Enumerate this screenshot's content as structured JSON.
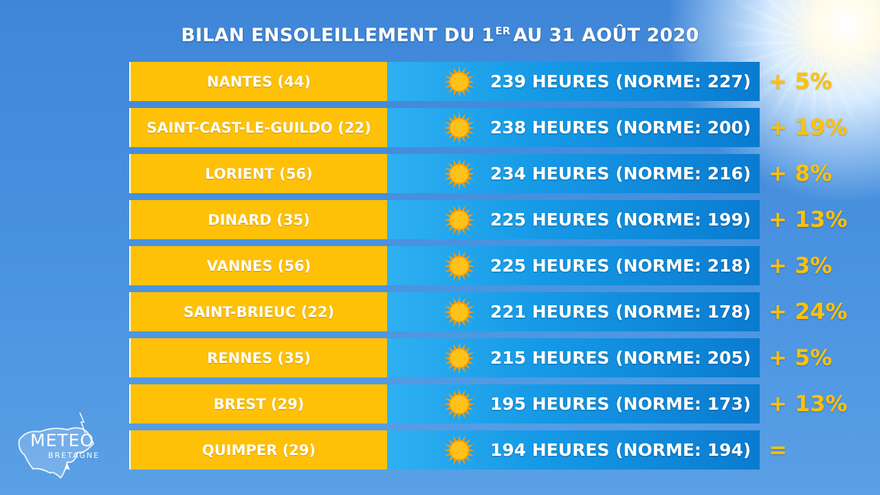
{
  "title": {
    "main": "BILAN ENSOLEILLEMENT DU 1",
    "sup": "ER",
    "rest": "AU 31 AOÛT 2020"
  },
  "colors": {
    "city_bg": "#ffc107",
    "data_bg": "#0a7bd0",
    "pct": "#ffc107",
    "text": "#ffffff"
  },
  "rows": [
    {
      "city": "NANTES (44)",
      "hours": "239 HEURES (NORME: 227)",
      "pct": "+ 5%"
    },
    {
      "city": "SAINT-CAST-LE-GUILDO (22)",
      "hours": "238 HEURES (NORME: 200)",
      "pct": "+ 19%"
    },
    {
      "city": "LORIENT (56)",
      "hours": "234 HEURES (NORME: 216)",
      "pct": "+ 8%"
    },
    {
      "city": "DINARD (35)",
      "hours": "225 HEURES (NORME: 199)",
      "pct": "+ 13%"
    },
    {
      "city": "VANNES (56)",
      "hours": "225 HEURES (NORME: 218)",
      "pct": "+ 3%"
    },
    {
      "city": "SAINT-BRIEUC (22)",
      "hours": "221 HEURES (NORME: 178)",
      "pct": "+ 24%"
    },
    {
      "city": "RENNES (35)",
      "hours": "215 HEURES (NORME: 205)",
      "pct": "+ 5%"
    },
    {
      "city": "BREST (29)",
      "hours": "195 HEURES (NORME: 173)",
      "pct": "+ 13%"
    },
    {
      "city": "QUIMPER (29)",
      "hours": "194 HEURES (NORME: 194)",
      "pct": "="
    }
  ],
  "icons": {
    "row_icon": "sun-icon",
    "logo_icon": "brittany-map-icon"
  },
  "logo": {
    "line1": "METEO",
    "line2": "BRETAGNE"
  }
}
